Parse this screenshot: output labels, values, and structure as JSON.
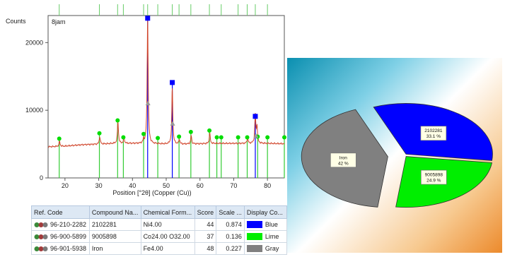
{
  "chart_data": [
    {
      "type": "line",
      "title": "",
      "sample_label": "8jam",
      "ylabel": "Counts",
      "xlabel": "Position [°2θ] (Copper (Cu))",
      "xlim": [
        15,
        85
      ],
      "ylim": [
        0,
        24000
      ],
      "x_ticks": [
        20,
        30,
        40,
        50,
        60,
        70,
        80
      ],
      "y_ticks": [
        0,
        10000,
        20000
      ],
      "y_tick_labels": [
        "0",
        "10000",
        "20000"
      ],
      "grid": false,
      "baseline": [
        [
          15,
          4600
        ],
        [
          20,
          4700
        ],
        [
          25,
          4900
        ],
        [
          30,
          5000
        ],
        [
          35,
          5100
        ],
        [
          40,
          5100
        ],
        [
          45,
          5050
        ],
        [
          50,
          5000
        ],
        [
          55,
          5000
        ],
        [
          60,
          5050
        ],
        [
          65,
          5100
        ],
        [
          70,
          5100
        ],
        [
          75,
          5100
        ],
        [
          80,
          5100
        ],
        [
          85,
          5050
        ]
      ],
      "peaks": [
        {
          "x": 18.4,
          "y": 5400
        },
        {
          "x": 30.3,
          "y": 6100
        },
        {
          "x": 35.7,
          "y": 8300
        },
        {
          "x": 37.5,
          "y": 5900
        },
        {
          "x": 43.3,
          "y": 5600
        },
        {
          "x": 44.5,
          "y": 23500
        },
        {
          "x": 51.8,
          "y": 13200
        },
        {
          "x": 53.9,
          "y": 5700
        },
        {
          "x": 57.4,
          "y": 6200
        },
        {
          "x": 62.9,
          "y": 6600
        },
        {
          "x": 74.1,
          "y": 5900
        },
        {
          "x": 76.4,
          "y": 9300
        },
        {
          "x": 76.9,
          "y": 7500
        }
      ],
      "reference_markers": [
        {
          "series": "Blue",
          "color": "#0000ff",
          "shape": "square",
          "points": [
            [
              44.5,
              23600
            ],
            [
              51.8,
              14100
            ],
            [
              76.4,
              9100
            ]
          ]
        },
        {
          "series": "Lime",
          "color": "#00dd00",
          "shape": "circle",
          "points": [
            [
              18.3,
              5800
            ],
            [
              30.2,
              6600
            ],
            [
              35.6,
              8500
            ],
            [
              37.3,
              6000
            ],
            [
              43.3,
              6500
            ],
            [
              47.5,
              5900
            ],
            [
              53.8,
              6100
            ],
            [
              57.3,
              6800
            ],
            [
              62.8,
              7000
            ],
            [
              65.0,
              6000
            ],
            [
              66.3,
              6000
            ],
            [
              71.3,
              6000
            ],
            [
              74.0,
              6000
            ],
            [
              77.1,
              6100
            ],
            [
              80.0,
              6000
            ],
            [
              85.0,
              6000
            ]
          ]
        },
        {
          "series": "Gray",
          "color": "#999999",
          "shape": "triangle",
          "points": [
            [
              44.6,
              11000
            ],
            [
              51.9,
              8000
            ],
            [
              76.6,
              6200
            ]
          ]
        }
      ],
      "top_ticks": [
        18.3,
        30.2,
        35.6,
        37.3,
        43.3,
        44.5,
        47.5,
        51.8,
        53.8,
        57.3,
        62.8,
        66.3,
        71.3,
        74.0,
        76.4,
        80.0
      ]
    },
    {
      "type": "pie",
      "slices": [
        {
          "label": "2102281",
          "percent": "33.1 %",
          "value": 33.1,
          "color": "#0000ff"
        },
        {
          "label": "9005898",
          "percent": "24.9 %",
          "value": 24.9,
          "color": "#00ee00"
        },
        {
          "label": "Iron",
          "percent": "42 %",
          "value": 42,
          "color": "#808080"
        }
      ]
    }
  ],
  "table": {
    "headers": [
      "Ref. Code",
      "Compound Na...",
      "Chemical Form...",
      "Score",
      "Scale ...",
      "Display Co..."
    ],
    "rows": [
      {
        "ref_code": "96-210-2282",
        "compound": "2102281",
        "formula": "Ni4.00",
        "score": "44",
        "scale": "0.874",
        "color_name": "Blue",
        "color": "#0000ff"
      },
      {
        "ref_code": "96-900-5899",
        "compound": "9005898",
        "formula": "Co24.00 O32.00",
        "score": "37",
        "scale": "0.136",
        "color_name": "Lime",
        "color": "#00ee00"
      },
      {
        "ref_code": "96-901-5938",
        "compound": "Iron",
        "formula": "Fe4.00",
        "score": "48",
        "scale": "0.227",
        "color_name": "Gray",
        "color": "#808080"
      }
    ]
  }
}
